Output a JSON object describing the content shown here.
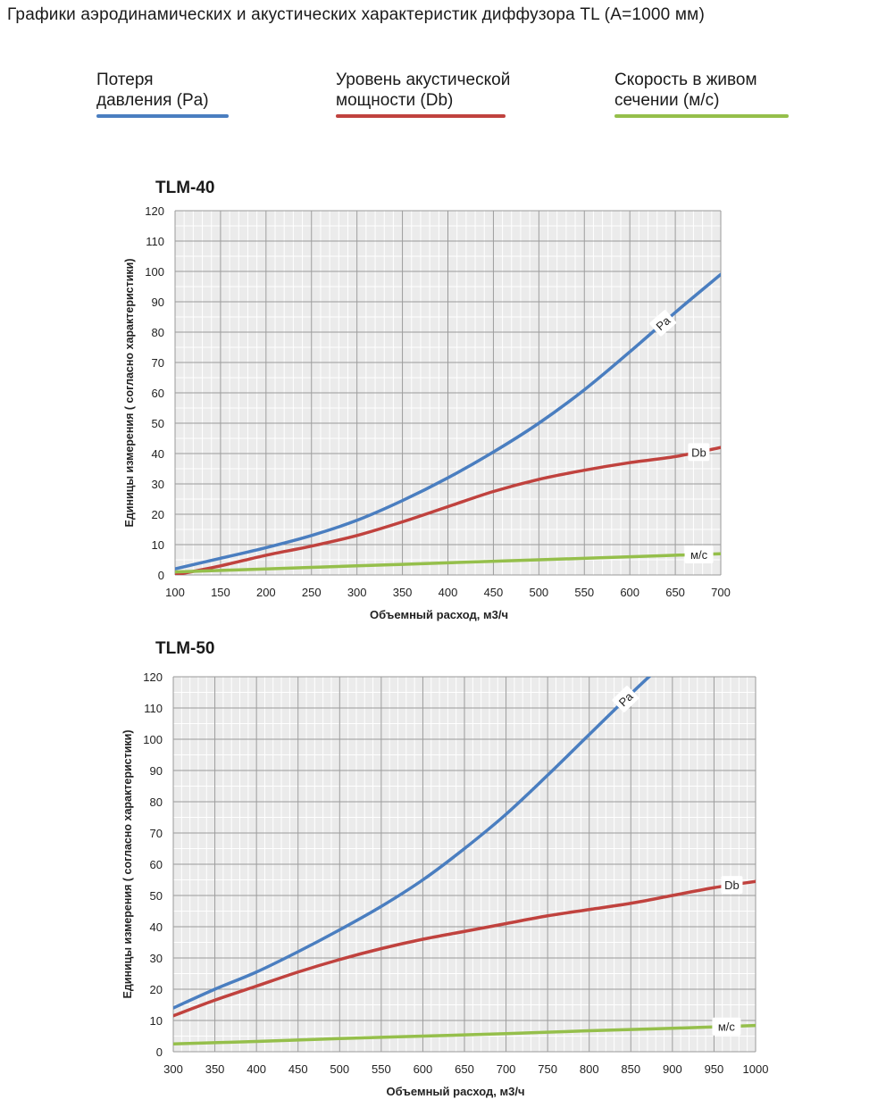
{
  "page": {
    "title": "Графики аэродинамических и акустических характеристик  диффузора TL (A=1000 мм)"
  },
  "legend": [
    {
      "label": "Потеря\nдавления (Pa)",
      "color": "#4a7ec0"
    },
    {
      "label": "Уровень акустической\nмощности (Db)",
      "color": "#c0423e"
    },
    {
      "label": "Скорость в живом\nсечении (м/с)",
      "color": "#95bf4b"
    }
  ],
  "chart_data": [
    {
      "type": "line",
      "title": "TLM-40",
      "xlabel": "Объемный расход, м3/ч",
      "ylabel": "Единицы измерения ( согласно характеристики)",
      "xlim": [
        100,
        700
      ],
      "ylim": [
        0,
        120
      ],
      "x_ticks": [
        100,
        150,
        200,
        250,
        300,
        350,
        400,
        450,
        500,
        550,
        600,
        650,
        700
      ],
      "y_ticks": [
        0,
        10,
        20,
        30,
        40,
        50,
        60,
        70,
        80,
        90,
        100,
        110,
        120
      ],
      "grid": true,
      "series": [
        {
          "name": "Pa",
          "color": "#4a7ec0",
          "x": [
            100,
            150,
            200,
            250,
            300,
            350,
            400,
            450,
            500,
            550,
            600,
            650,
            700
          ],
          "y": [
            2,
            5.5,
            9,
            13,
            18,
            24.5,
            32,
            40.5,
            50,
            61,
            73.5,
            86.5,
            99
          ]
        },
        {
          "name": "Db",
          "color": "#c0423e",
          "x": [
            100,
            150,
            200,
            250,
            300,
            350,
            400,
            450,
            500,
            550,
            600,
            650,
            700
          ],
          "y": [
            0,
            3,
            6.5,
            9.5,
            13,
            17.5,
            22.5,
            27.5,
            31.5,
            34.5,
            37,
            39,
            42
          ]
        },
        {
          "name": "м/с",
          "color": "#95bf4b",
          "x": [
            100,
            200,
            300,
            400,
            500,
            600,
            700
          ],
          "y": [
            1,
            2,
            3,
            4,
            5,
            6,
            7
          ]
        }
      ]
    },
    {
      "type": "line",
      "title": "TLM-50",
      "xlabel": "Объемный расход, м3/ч",
      "ylabel": "Единицы измерения ( согласно характеристики)",
      "xlim": [
        300,
        1000
      ],
      "ylim": [
        0,
        120
      ],
      "x_ticks": [
        300,
        350,
        400,
        450,
        500,
        550,
        600,
        650,
        700,
        750,
        800,
        850,
        900,
        950,
        1000
      ],
      "y_ticks": [
        0,
        10,
        20,
        30,
        40,
        50,
        60,
        70,
        80,
        90,
        100,
        110,
        120
      ],
      "grid": true,
      "series": [
        {
          "name": "Pa",
          "color": "#4a7ec0",
          "x": [
            300,
            350,
            400,
            450,
            500,
            550,
            600,
            650,
            700,
            750,
            800,
            850,
            880
          ],
          "y": [
            14,
            20,
            25.5,
            32,
            39,
            46.5,
            55,
            65,
            76,
            88.5,
            101.5,
            114.5,
            122
          ]
        },
        {
          "name": "Db",
          "color": "#c0423e",
          "x": [
            300,
            350,
            400,
            450,
            500,
            550,
            600,
            650,
            700,
            750,
            800,
            850,
            900,
            950,
            1000
          ],
          "y": [
            11.5,
            16.5,
            21,
            25.5,
            29.5,
            33,
            36,
            38.5,
            41,
            43.5,
            45.5,
            47.5,
            50,
            52.5,
            54.5
          ]
        },
        {
          "name": "м/с",
          "color": "#95bf4b",
          "x": [
            300,
            400,
            500,
            600,
            700,
            800,
            900,
            1000
          ],
          "y": [
            2.5,
            3.3,
            4.2,
            5,
            5.8,
            6.7,
            7.5,
            8.4
          ]
        }
      ]
    }
  ]
}
